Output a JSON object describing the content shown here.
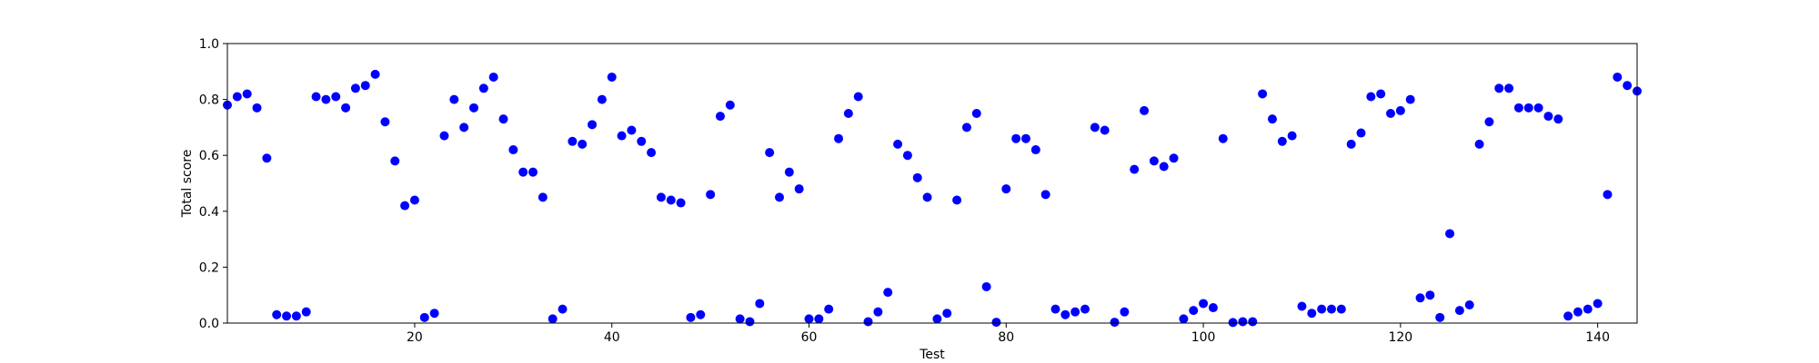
{
  "chart_data": {
    "type": "scatter",
    "title": "",
    "xlabel": "Test",
    "ylabel": "Total score",
    "xlim": [
      1,
      144
    ],
    "ylim": [
      0.0,
      1.0
    ],
    "xticks": [
      20,
      40,
      60,
      80,
      100,
      120,
      140
    ],
    "yticks": [
      "0.0",
      "0.2",
      "0.4",
      "0.6",
      "0.8",
      "1.0"
    ],
    "grid": false,
    "marker_color": "#0000ff",
    "series": [
      {
        "x": [
          1,
          2,
          3,
          4,
          5,
          6,
          7,
          8,
          9,
          10,
          11,
          12,
          13,
          14,
          15,
          16,
          17,
          18,
          19,
          20,
          21,
          22,
          23,
          24,
          25,
          26,
          27,
          28,
          29,
          30,
          31,
          32,
          33,
          34,
          35,
          36,
          37,
          38,
          39,
          40,
          41,
          42,
          43,
          44,
          45,
          46,
          47,
          48,
          49,
          50,
          51,
          52,
          53,
          54,
          55,
          56,
          57,
          58,
          59,
          60,
          61,
          62,
          63,
          64,
          65,
          66,
          67,
          68,
          69,
          70,
          71,
          72,
          73,
          74,
          75,
          76,
          77,
          78,
          79,
          80,
          81,
          82,
          83,
          84,
          85,
          86,
          87,
          88,
          89,
          90,
          91,
          92,
          93,
          94,
          95,
          96,
          97,
          98,
          99,
          100,
          101,
          102,
          103,
          104,
          105,
          106,
          107,
          108,
          109,
          110,
          111,
          112,
          113,
          114,
          115,
          116,
          117,
          118,
          119,
          120,
          121,
          122,
          123,
          124,
          125,
          126,
          127,
          128,
          129,
          130,
          131,
          132,
          133,
          134,
          135,
          136,
          137,
          138,
          139,
          140,
          141,
          142,
          143,
          144
        ],
        "y": [
          0.78,
          0.81,
          0.82,
          0.77,
          0.59,
          0.03,
          0.025,
          0.025,
          0.04,
          0.81,
          0.8,
          0.81,
          0.77,
          0.84,
          0.85,
          0.89,
          0.72,
          0.58,
          0.42,
          0.44,
          0.02,
          0.035,
          0.67,
          0.8,
          0.7,
          0.77,
          0.84,
          0.88,
          0.73,
          0.62,
          0.54,
          0.54,
          0.45,
          0.015,
          0.05,
          0.65,
          0.64,
          0.71,
          0.8,
          0.88,
          0.67,
          0.69,
          0.65,
          0.61,
          0.45,
          0.44,
          0.43,
          0.02,
          0.03,
          0.46,
          0.74,
          0.78,
          0.015,
          0.005,
          0.07,
          0.61,
          0.45,
          0.54,
          0.48,
          0.015,
          0.015,
          0.05,
          0.66,
          0.75,
          0.81,
          0.005,
          0.04,
          0.11,
          0.64,
          0.6,
          0.52,
          0.45,
          0.015,
          0.035,
          0.44,
          0.7,
          0.75,
          0.13,
          0.003,
          0.48,
          0.66,
          0.66,
          0.62,
          0.46,
          0.05,
          0.03,
          0.04,
          0.05,
          0.7,
          0.69,
          0.003,
          0.04,
          0.55,
          0.76,
          0.58,
          0.56,
          0.59,
          0.015,
          0.045,
          0.07,
          0.055,
          0.66,
          0.002,
          0.005,
          0.005,
          0.82,
          0.73,
          0.65,
          0.67,
          0.06,
          0.035,
          0.05,
          0.05,
          0.05,
          0.64,
          0.68,
          0.81,
          0.82,
          0.75,
          0.76,
          0.8,
          0.09,
          0.1,
          0.02,
          0.32,
          0.045,
          0.065,
          0.64,
          0.72,
          0.84,
          0.84,
          0.77,
          0.77,
          0.77,
          0.74,
          0.73,
          0.025,
          0.04,
          0.05,
          0.07,
          0.46,
          0.88,
          0.85,
          0.83
        ]
      }
    ]
  }
}
